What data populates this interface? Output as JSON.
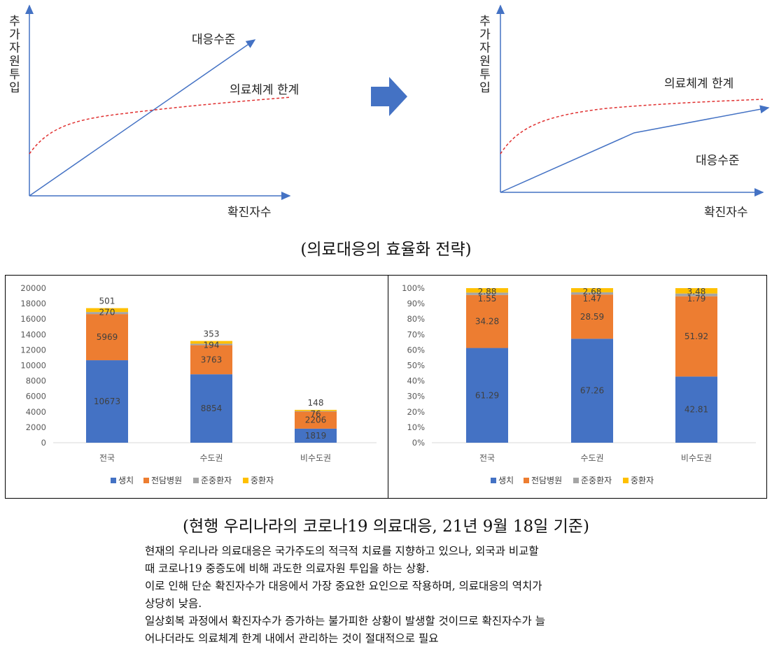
{
  "concept": {
    "left": {
      "y_axis_label": [
        "추",
        "가",
        "자",
        "원",
        "투",
        "입"
      ],
      "x_axis_label": "확진자수",
      "response_label": "대응수준",
      "limit_label": "의료체계 한계"
    },
    "right": {
      "y_axis_label": [
        "추",
        "가",
        "자",
        "원",
        "투",
        "입"
      ],
      "x_axis_label": "확진자수",
      "response_label": "대응수준",
      "limit_label": "의료체계 한계"
    },
    "arrow_icon": "right-arrow-icon",
    "caption": "(의료대응의 효율화 전략)"
  },
  "chart_data": [
    {
      "type": "bar",
      "stacked": true,
      "categories": [
        "전국",
        "수도권",
        "비수도권"
      ],
      "series": [
        {
          "name": "생치",
          "color": "#4472C4",
          "values": [
            10673,
            8854,
            1819
          ]
        },
        {
          "name": "전담병원",
          "color": "#ED7D31",
          "values": [
            5969,
            3763,
            2206
          ]
        },
        {
          "name": "준중환자",
          "color": "#A5A5A5",
          "values": [
            270,
            194,
            76
          ]
        },
        {
          "name": "중환자",
          "color": "#FFC000",
          "values": [
            501,
            353,
            148
          ]
        }
      ],
      "data_labels": [
        [
          "10673",
          "5969",
          "270",
          "501"
        ],
        [
          "8854",
          "3763",
          "194",
          "353"
        ],
        [
          "1819",
          "2206",
          "76",
          "148"
        ]
      ],
      "yticks": [
        "0",
        "2000",
        "4000",
        "6000",
        "8000",
        "10000",
        "12000",
        "14000",
        "16000",
        "18000",
        "20000"
      ],
      "ylim": [
        0,
        20000
      ],
      "legend_position": "bottom"
    },
    {
      "type": "bar",
      "stacked": true,
      "percent": true,
      "categories": [
        "전국",
        "수도권",
        "비수도권"
      ],
      "series": [
        {
          "name": "생치",
          "color": "#4472C4",
          "values": [
            61.29,
            67.26,
            42.81
          ]
        },
        {
          "name": "전담병원",
          "color": "#ED7D31",
          "values": [
            34.28,
            28.59,
            51.92
          ]
        },
        {
          "name": "준중환자",
          "color": "#A5A5A5",
          "values": [
            1.55,
            1.47,
            1.79
          ]
        },
        {
          "name": "중환자",
          "color": "#FFC000",
          "values": [
            2.88,
            2.68,
            3.48
          ]
        }
      ],
      "data_labels": [
        [
          "61.29",
          "34.28",
          "1.55",
          "2.88"
        ],
        [
          "67.26",
          "28.59",
          "1.47",
          "2.68"
        ],
        [
          "42.81",
          "51.92",
          "1.79",
          "3.48"
        ]
      ],
      "yticks": [
        "0%",
        "10%",
        "20%",
        "30%",
        "40%",
        "50%",
        "60%",
        "70%",
        "80%",
        "90%",
        "100%"
      ],
      "ylim": [
        0,
        100
      ],
      "legend_position": "bottom"
    }
  ],
  "status": {
    "caption": "(현행 우리나라의 코로나19 의료대응, 21년 9월 18일 기준)",
    "paragraph": [
      "현재의 우리나라 의료대응은 국가주도의 적극적 치료를 지향하고 있으나, 외국과 비교할",
      "때 코로나19 중증도에 비해 과도한 의료자원 투입을 하는 상황.",
      "이로 인해 단순 확진자수가 대응에서 가장 중요한 요인으로 작용하며, 의료대응의 역치가",
      "상당히 낮음.",
      "일상회복 과정에서 확진자수가 증가하는 불가피한 상황이 발생할 것이므로 확진자수가 늘",
      "어나더라도 의료체계 한계 내에서 관리하는 것이 절대적으로 필요"
    ]
  }
}
